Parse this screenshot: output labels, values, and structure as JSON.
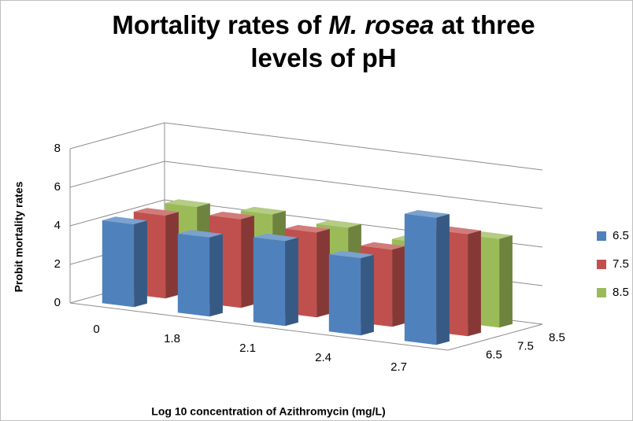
{
  "chart_data": {
    "type": "bar3d",
    "title": [
      "Mortality rates of",
      "M. rosea",
      "at three",
      "levels of pH"
    ],
    "xlabel": "Log 10 concentration of Azithromycin (mg/L)",
    "ylabel": "Probit mortality rates",
    "categories": [
      "0",
      "1.8",
      "2.1",
      "2.4",
      "2.7"
    ],
    "series": [
      {
        "name": "6.5",
        "color": "#4f81bd",
        "values": [
          4.3,
          4.1,
          4.4,
          4.0,
          6.6
        ]
      },
      {
        "name": "7.5",
        "color": "#c0504d",
        "values": [
          4.3,
          4.6,
          4.4,
          4.0,
          5.3
        ]
      },
      {
        "name": "8.5",
        "color": "#9bbb59",
        "values": [
          4.3,
          4.4,
          4.2,
          3.9,
          4.6
        ]
      }
    ],
    "ylim": [
      0,
      8
    ],
    "yticks": [
      0,
      2,
      4,
      6,
      8
    ],
    "grid": true,
    "legend": "right"
  }
}
